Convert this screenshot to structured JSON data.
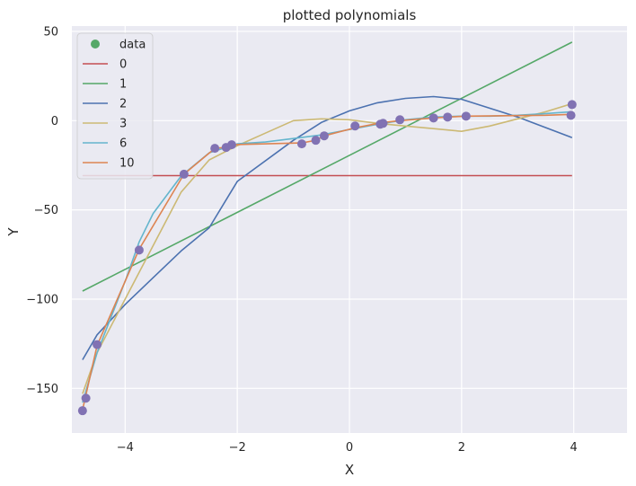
{
  "chart_data": {
    "type": "line",
    "title": "plotted polynomials",
    "xlabel": "X",
    "ylabel": "Y",
    "xlim": [
      -4.95,
      4.95
    ],
    "ylim": [
      -175,
      53
    ],
    "xticks": [
      -4,
      -2,
      0,
      2,
      4
    ],
    "yticks": [
      50,
      0,
      -50,
      -100,
      -150
    ],
    "xtick_labels": [
      "−4",
      "−2",
      "0",
      "2",
      "4"
    ],
    "ytick_labels": [
      "50",
      "0",
      "−50",
      "−100",
      "−150"
    ],
    "grid": true,
    "legend_position": "top-left",
    "scatter": {
      "name": "data",
      "color": "#55a868",
      "marker_color": "#8172b3",
      "points": [
        [
          -4.76,
          -162.5
        ],
        [
          -4.7,
          -155.5
        ],
        [
          -4.5,
          -125.5
        ],
        [
          -3.75,
          -72.5
        ],
        [
          -2.95,
          -30.0
        ],
        [
          -2.4,
          -15.5
        ],
        [
          -2.2,
          -15.0
        ],
        [
          -2.1,
          -13.5
        ],
        [
          -0.85,
          -13.0
        ],
        [
          -0.6,
          -11.0
        ],
        [
          -0.45,
          -8.5
        ],
        [
          0.1,
          -3.0
        ],
        [
          0.55,
          -2.0
        ],
        [
          0.6,
          -1.5
        ],
        [
          0.9,
          0.5
        ],
        [
          1.5,
          1.5
        ],
        [
          1.75,
          2.0
        ],
        [
          2.08,
          2.5
        ],
        [
          3.95,
          3.0
        ],
        [
          3.97,
          9.0
        ]
      ]
    },
    "series": [
      {
        "name": "0",
        "color": "#c44e52",
        "points": [
          [
            -4.76,
            -30.8
          ],
          [
            3.97,
            -30.8
          ]
        ]
      },
      {
        "name": "1",
        "color": "#55a868",
        "points": [
          [
            -4.76,
            -95.5
          ],
          [
            3.97,
            44.0
          ]
        ]
      },
      {
        "name": "2",
        "color": "#4c72b0",
        "points": [
          [
            -4.76,
            -134
          ],
          [
            -4.5,
            -120
          ],
          [
            -4.0,
            -103
          ],
          [
            -3.5,
            -88
          ],
          [
            -3.0,
            -73
          ],
          [
            -2.5,
            -60
          ],
          [
            -2.0,
            -34
          ],
          [
            -1.0,
            -11
          ],
          [
            -0.5,
            -1
          ],
          [
            0.0,
            5.5
          ],
          [
            0.5,
            10
          ],
          [
            1.0,
            12.5
          ],
          [
            1.5,
            13.5
          ],
          [
            2.0,
            12
          ],
          [
            3.0,
            2
          ],
          [
            3.97,
            -9.5
          ]
        ]
      },
      {
        "name": "3",
        "color": "#ccb974",
        "points": [
          [
            -4.76,
            -153
          ],
          [
            -4.5,
            -130
          ],
          [
            -4.0,
            -100
          ],
          [
            -3.5,
            -70
          ],
          [
            -3.0,
            -40
          ],
          [
            -2.5,
            -22
          ],
          [
            -2.0,
            -14
          ],
          [
            -1.5,
            -7
          ],
          [
            -1.0,
            0
          ],
          [
            -0.5,
            1
          ],
          [
            0.0,
            0.5
          ],
          [
            0.5,
            -1.5
          ],
          [
            1.0,
            -3
          ],
          [
            1.5,
            -4.5
          ],
          [
            2.0,
            -6
          ],
          [
            2.5,
            -3
          ],
          [
            3.0,
            1
          ],
          [
            3.5,
            5
          ],
          [
            3.97,
            9.5
          ]
        ]
      },
      {
        "name": "6",
        "color": "#64b5cd",
        "points": [
          [
            -4.76,
            -158
          ],
          [
            -4.5,
            -130
          ],
          [
            -4.0,
            -90
          ],
          [
            -3.75,
            -68
          ],
          [
            -3.5,
            -52
          ],
          [
            -3.0,
            -31
          ],
          [
            -2.5,
            -18
          ],
          [
            -2.0,
            -13
          ],
          [
            -1.5,
            -12
          ],
          [
            -1.0,
            -10
          ],
          [
            -0.5,
            -8
          ],
          [
            0.0,
            -5
          ],
          [
            0.5,
            -2
          ],
          [
            1.0,
            0.5
          ],
          [
            1.5,
            2
          ],
          [
            2.0,
            2.5
          ],
          [
            2.5,
            2.5
          ],
          [
            3.0,
            3
          ],
          [
            3.5,
            4
          ],
          [
            3.97,
            5
          ]
        ]
      },
      {
        "name": "10",
        "color": "#dd8452",
        "points": [
          [
            -4.76,
            -162
          ],
          [
            -4.5,
            -126
          ],
          [
            -3.75,
            -72
          ],
          [
            -2.95,
            -30
          ],
          [
            -2.4,
            -15.5
          ],
          [
            -2.2,
            -15
          ],
          [
            -2.1,
            -13.5
          ],
          [
            -0.85,
            -12.5
          ],
          [
            -0.6,
            -11
          ],
          [
            -0.45,
            -8.5
          ],
          [
            0.1,
            -4
          ],
          [
            0.6,
            -1
          ],
          [
            0.9,
            0
          ],
          [
            1.5,
            1.5
          ],
          [
            1.75,
            2
          ],
          [
            2.08,
            2.5
          ],
          [
            3.5,
            3
          ],
          [
            3.97,
            3.5
          ]
        ]
      }
    ]
  }
}
